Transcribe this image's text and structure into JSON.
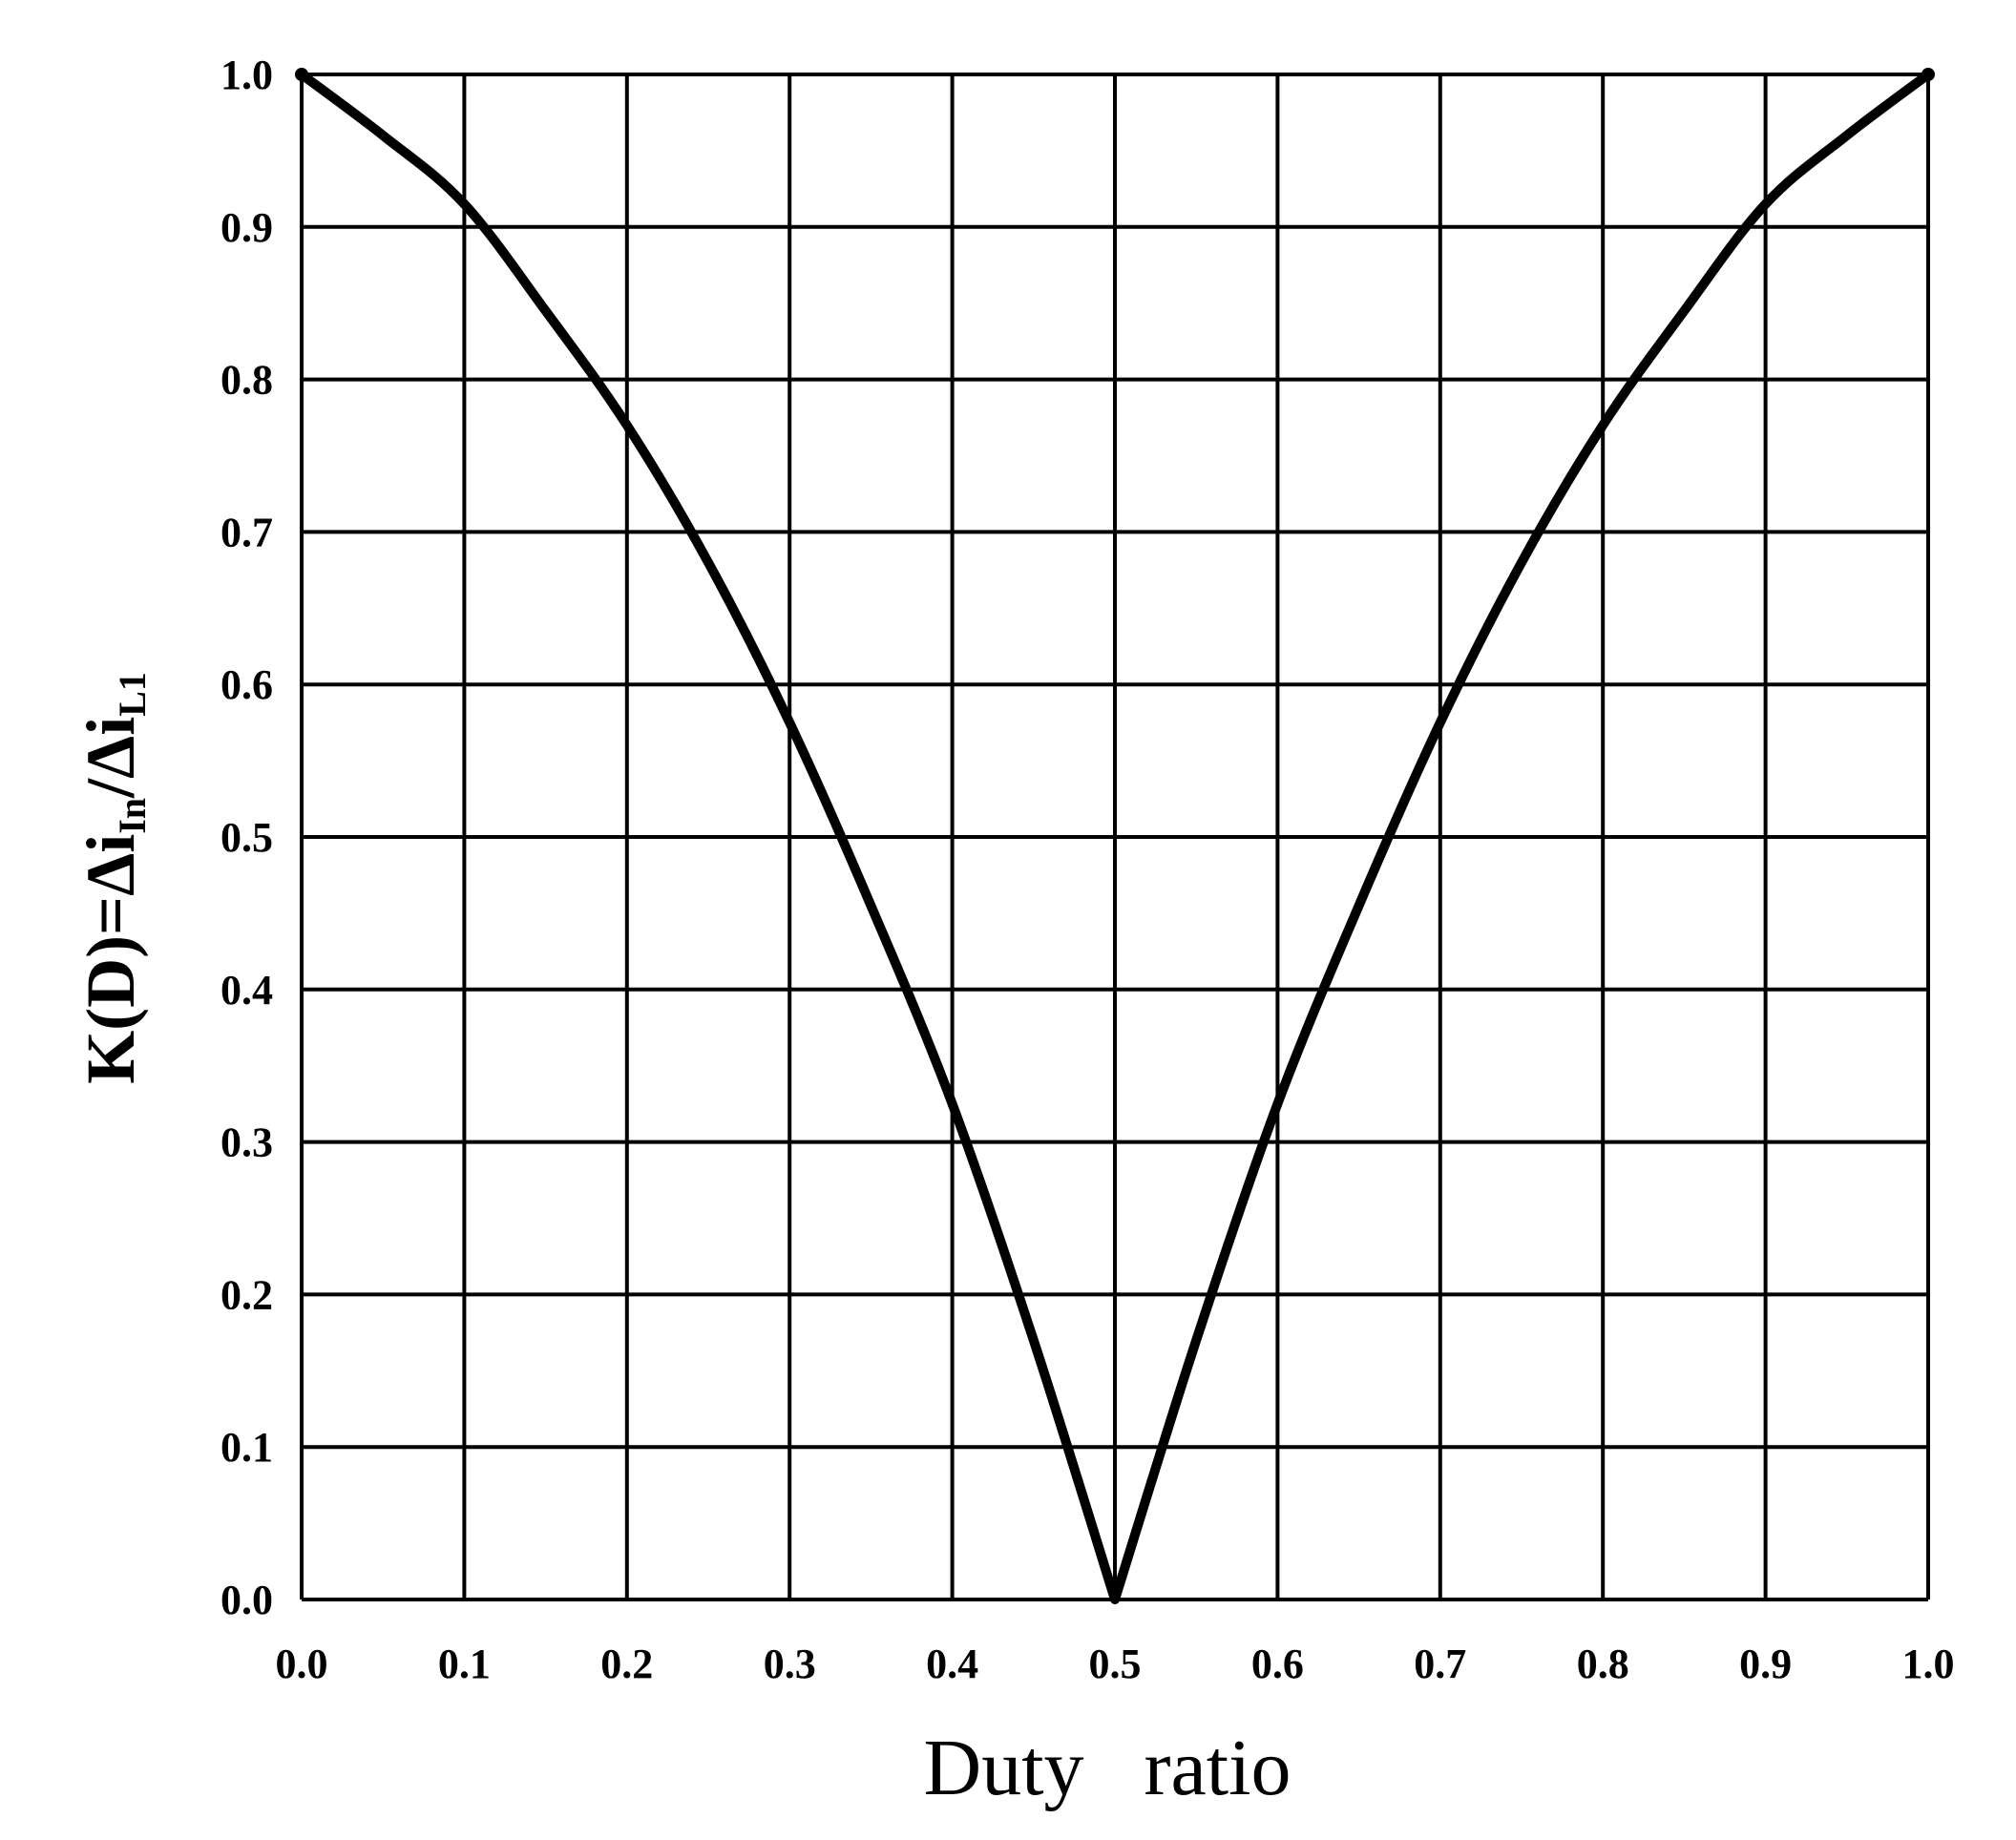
{
  "chart_data": {
    "type": "line",
    "title": "",
    "xlabel": "Duty   ratio",
    "ylabel": {
      "main_prefix": "K(D)=Δi",
      "sub1": "In",
      "mid": "/Δi",
      "sub2": "L1"
    },
    "xlim": [
      0.0,
      1.0
    ],
    "ylim": [
      0.0,
      1.0
    ],
    "grid": true,
    "legend": "none",
    "x_ticks": [
      "0.0",
      "0.1",
      "0.2",
      "0.3",
      "0.4",
      "0.5",
      "0.6",
      "0.7",
      "0.8",
      "0.9",
      "1.0"
    ],
    "y_ticks": [
      "0.0",
      "0.1",
      "0.2",
      "0.3",
      "0.4",
      "0.5",
      "0.6",
      "0.7",
      "0.8",
      "0.9",
      "1.0"
    ],
    "series": [
      {
        "color": "#000000",
        "x": [
          0.0,
          0.05,
          0.1,
          0.15,
          0.2,
          0.25,
          0.3,
          0.35,
          0.4,
          0.45,
          0.5,
          0.55,
          0.6,
          0.65,
          0.7,
          0.75,
          0.8,
          0.85,
          0.9,
          0.95,
          1.0
        ],
        "y": [
          1.0,
          0.96,
          0.915,
          0.845,
          0.77,
          0.68,
          0.575,
          0.455,
          0.325,
          0.17,
          0.0,
          0.17,
          0.325,
          0.455,
          0.575,
          0.68,
          0.77,
          0.845,
          0.915,
          0.96,
          1.0
        ]
      }
    ]
  },
  "colors": {
    "background": "#ffffff",
    "grid": "#000000",
    "line": "#000000"
  }
}
